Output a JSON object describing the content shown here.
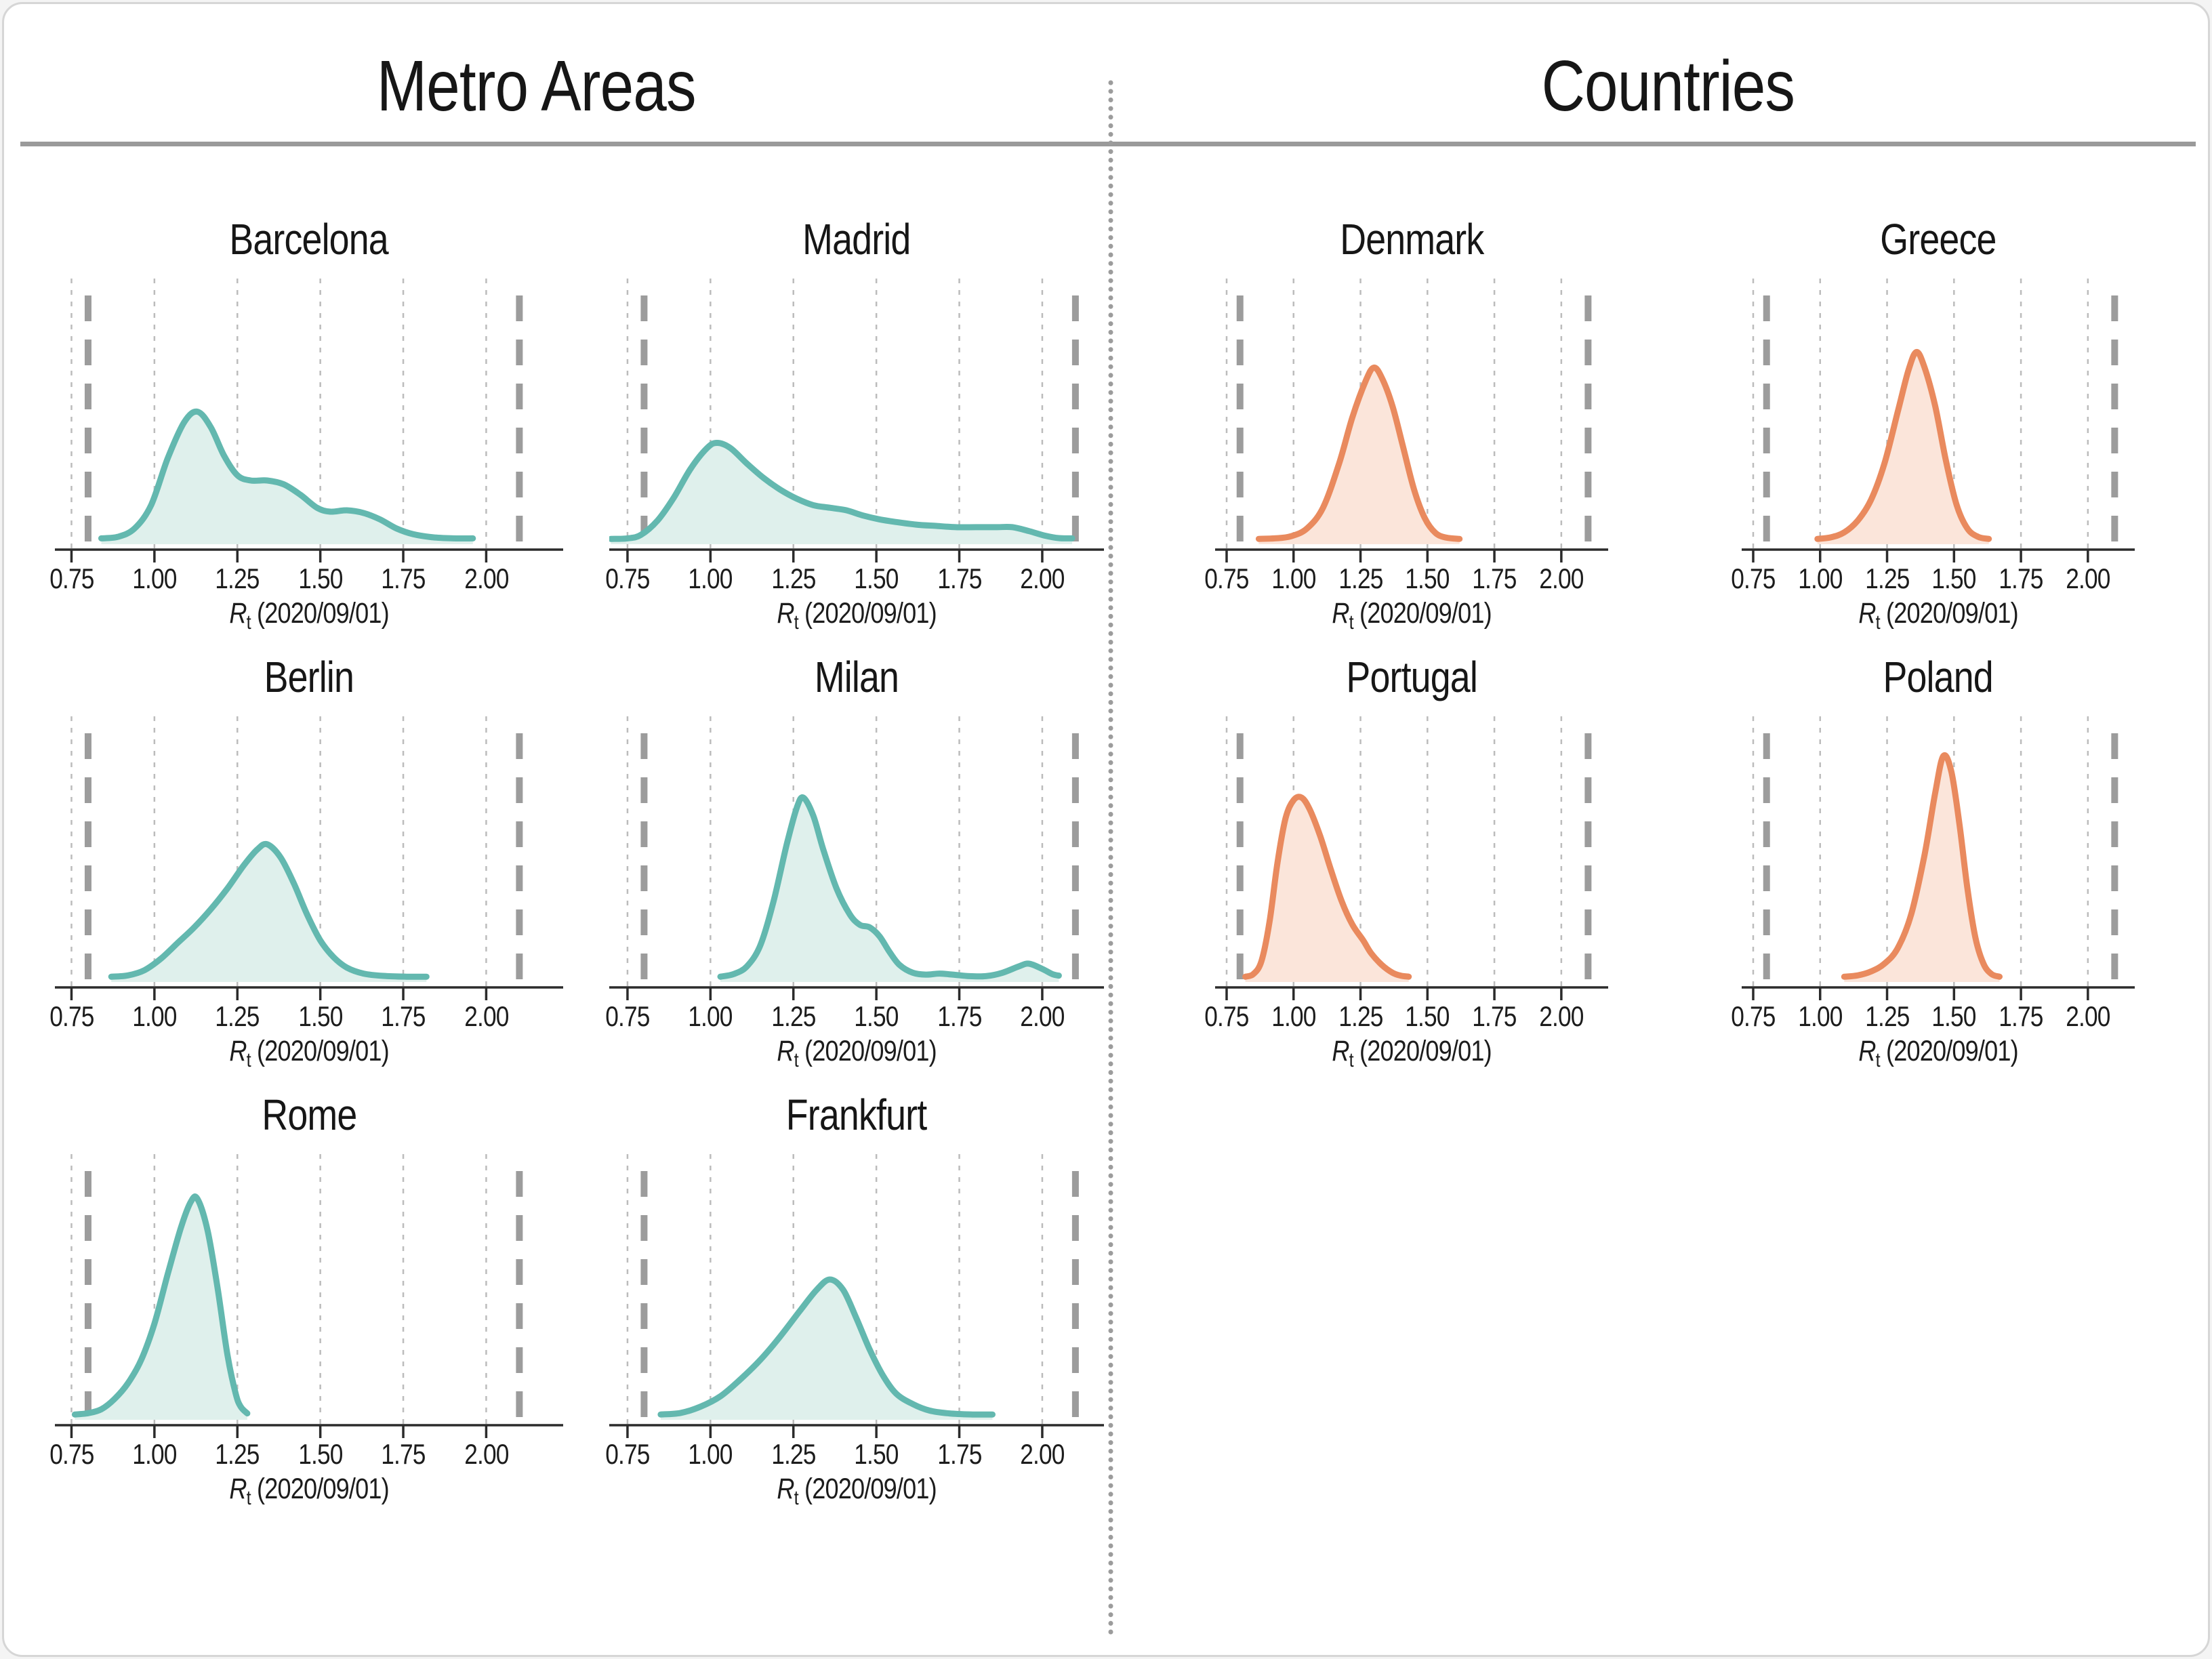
{
  "colors": {
    "metro_stroke": "#63b8af",
    "metro_fill": "#dff0ec",
    "country_stroke": "#e98a5e",
    "country_fill": "#fbe5da",
    "axis": "#2b2b2b",
    "gridline": "#bcbcbc",
    "bound_dash": "#9c9c9c",
    "divider": "#9a9a9a",
    "dots": "#9c9c9c"
  },
  "axis": {
    "xlabel_r": "R",
    "xlabel_sub": "t",
    "xlabel_rest": " (2020/09/01)"
  },
  "chart_data": {
    "type": "area",
    "subtype": "density-kde-small-multiples",
    "title": "",
    "xlabel": "R_t (2020/09/01)",
    "x_ticks": [
      0.75,
      1.0,
      1.25,
      1.5,
      1.75,
      2.0
    ],
    "x_tick_labels": [
      "0.75",
      "1.00",
      "1.25",
      "1.50",
      "1.75",
      "2.00"
    ],
    "reference_lines_x": [
      0.8,
      2.1
    ],
    "grid": "vertical-dotted",
    "legend": "none",
    "sections": [
      {
        "title": "Metro Areas",
        "stroke": "#63b8af",
        "fill": "#dff0ec"
      },
      {
        "title": "Countries",
        "stroke": "#e98a5e",
        "fill": "#fbe5da"
      }
    ],
    "panels": [
      {
        "title": "Barcelona",
        "section": 0,
        "col": "leftA",
        "row": 0,
        "points": [
          [
            0.84,
            0.012
          ],
          [
            0.89,
            0.018
          ],
          [
            0.94,
            0.05
          ],
          [
            0.99,
            0.14
          ],
          [
            1.04,
            0.32
          ],
          [
            1.09,
            0.46
          ],
          [
            1.13,
            0.5
          ],
          [
            1.17,
            0.44
          ],
          [
            1.21,
            0.33
          ],
          [
            1.25,
            0.255
          ],
          [
            1.29,
            0.235
          ],
          [
            1.34,
            0.235
          ],
          [
            1.39,
            0.22
          ],
          [
            1.44,
            0.18
          ],
          [
            1.49,
            0.13
          ],
          [
            1.53,
            0.115
          ],
          [
            1.58,
            0.12
          ],
          [
            1.63,
            0.11
          ],
          [
            1.68,
            0.085
          ],
          [
            1.73,
            0.05
          ],
          [
            1.78,
            0.028
          ],
          [
            1.84,
            0.016
          ],
          [
            1.9,
            0.012
          ],
          [
            1.96,
            0.012
          ]
        ]
      },
      {
        "title": "Madrid",
        "section": 0,
        "col": "leftB",
        "row": 0,
        "points": [
          [
            0.7,
            0.01
          ],
          [
            0.75,
            0.012
          ],
          [
            0.79,
            0.025
          ],
          [
            0.84,
            0.08
          ],
          [
            0.89,
            0.17
          ],
          [
            0.94,
            0.28
          ],
          [
            0.99,
            0.36
          ],
          [
            1.02,
            0.38
          ],
          [
            1.06,
            0.36
          ],
          [
            1.11,
            0.3
          ],
          [
            1.16,
            0.245
          ],
          [
            1.21,
            0.2
          ],
          [
            1.26,
            0.165
          ],
          [
            1.31,
            0.14
          ],
          [
            1.36,
            0.13
          ],
          [
            1.41,
            0.12
          ],
          [
            1.46,
            0.1
          ],
          [
            1.51,
            0.085
          ],
          [
            1.56,
            0.075
          ],
          [
            1.62,
            0.065
          ],
          [
            1.68,
            0.06
          ],
          [
            1.74,
            0.055
          ],
          [
            1.8,
            0.055
          ],
          [
            1.86,
            0.055
          ],
          [
            1.91,
            0.055
          ],
          [
            1.96,
            0.04
          ],
          [
            2.01,
            0.022
          ],
          [
            2.05,
            0.013
          ],
          [
            2.09,
            0.012
          ]
        ]
      },
      {
        "title": "Berlin",
        "section": 0,
        "col": "leftA",
        "row": 1,
        "points": [
          [
            0.87,
            0.01
          ],
          [
            0.92,
            0.015
          ],
          [
            0.97,
            0.035
          ],
          [
            1.02,
            0.08
          ],
          [
            1.07,
            0.14
          ],
          [
            1.12,
            0.2
          ],
          [
            1.17,
            0.27
          ],
          [
            1.22,
            0.35
          ],
          [
            1.27,
            0.44
          ],
          [
            1.31,
            0.5
          ],
          [
            1.34,
            0.52
          ],
          [
            1.38,
            0.47
          ],
          [
            1.42,
            0.37
          ],
          [
            1.46,
            0.25
          ],
          [
            1.5,
            0.15
          ],
          [
            1.54,
            0.085
          ],
          [
            1.58,
            0.045
          ],
          [
            1.63,
            0.022
          ],
          [
            1.69,
            0.013
          ],
          [
            1.76,
            0.01
          ],
          [
            1.82,
            0.01
          ]
        ]
      },
      {
        "title": "Milan",
        "section": 0,
        "col": "leftB",
        "row": 1,
        "points": [
          [
            1.03,
            0.01
          ],
          [
            1.07,
            0.02
          ],
          [
            1.11,
            0.05
          ],
          [
            1.15,
            0.13
          ],
          [
            1.19,
            0.3
          ],
          [
            1.23,
            0.52
          ],
          [
            1.26,
            0.66
          ],
          [
            1.28,
            0.7
          ],
          [
            1.31,
            0.63
          ],
          [
            1.34,
            0.5
          ],
          [
            1.38,
            0.35
          ],
          [
            1.42,
            0.25
          ],
          [
            1.45,
            0.21
          ],
          [
            1.48,
            0.2
          ],
          [
            1.51,
            0.165
          ],
          [
            1.54,
            0.105
          ],
          [
            1.57,
            0.055
          ],
          [
            1.61,
            0.025
          ],
          [
            1.65,
            0.018
          ],
          [
            1.69,
            0.022
          ],
          [
            1.73,
            0.018
          ],
          [
            1.78,
            0.012
          ],
          [
            1.83,
            0.012
          ],
          [
            1.88,
            0.025
          ],
          [
            1.93,
            0.05
          ],
          [
            1.96,
            0.06
          ],
          [
            2.0,
            0.04
          ],
          [
            2.03,
            0.02
          ],
          [
            2.05,
            0.014
          ]
        ]
      },
      {
        "title": "Rome",
        "section": 0,
        "col": "leftA",
        "row": 2,
        "points": [
          [
            0.76,
            0.01
          ],
          [
            0.8,
            0.015
          ],
          [
            0.84,
            0.03
          ],
          [
            0.88,
            0.07
          ],
          [
            0.92,
            0.13
          ],
          [
            0.96,
            0.22
          ],
          [
            1.0,
            0.36
          ],
          [
            1.04,
            0.55
          ],
          [
            1.08,
            0.73
          ],
          [
            1.11,
            0.83
          ],
          [
            1.13,
            0.84
          ],
          [
            1.16,
            0.72
          ],
          [
            1.19,
            0.5
          ],
          [
            1.22,
            0.24
          ],
          [
            1.245,
            0.09
          ],
          [
            1.26,
            0.04
          ],
          [
            1.28,
            0.014
          ]
        ]
      },
      {
        "title": "Frankfurt",
        "section": 0,
        "col": "leftB",
        "row": 2,
        "points": [
          [
            0.85,
            0.01
          ],
          [
            0.91,
            0.016
          ],
          [
            0.97,
            0.04
          ],
          [
            1.03,
            0.08
          ],
          [
            1.09,
            0.145
          ],
          [
            1.15,
            0.22
          ],
          [
            1.21,
            0.31
          ],
          [
            1.27,
            0.41
          ],
          [
            1.32,
            0.49
          ],
          [
            1.36,
            0.53
          ],
          [
            1.4,
            0.49
          ],
          [
            1.44,
            0.38
          ],
          [
            1.48,
            0.26
          ],
          [
            1.52,
            0.16
          ],
          [
            1.56,
            0.09
          ],
          [
            1.61,
            0.05
          ],
          [
            1.66,
            0.025
          ],
          [
            1.72,
            0.014
          ],
          [
            1.79,
            0.01
          ],
          [
            1.85,
            0.01
          ]
        ]
      },
      {
        "title": "Denmark",
        "section": 1,
        "col": "rightA",
        "row": 0,
        "points": [
          [
            0.87,
            0.01
          ],
          [
            0.93,
            0.012
          ],
          [
            0.99,
            0.02
          ],
          [
            1.05,
            0.05
          ],
          [
            1.11,
            0.13
          ],
          [
            1.17,
            0.3
          ],
          [
            1.22,
            0.48
          ],
          [
            1.27,
            0.62
          ],
          [
            1.3,
            0.67
          ],
          [
            1.33,
            0.63
          ],
          [
            1.37,
            0.52
          ],
          [
            1.41,
            0.36
          ],
          [
            1.45,
            0.2
          ],
          [
            1.49,
            0.09
          ],
          [
            1.53,
            0.033
          ],
          [
            1.57,
            0.015
          ],
          [
            1.62,
            0.01
          ]
        ]
      },
      {
        "title": "Greece",
        "section": 1,
        "col": "rightB",
        "row": 0,
        "points": [
          [
            0.99,
            0.01
          ],
          [
            1.04,
            0.016
          ],
          [
            1.09,
            0.035
          ],
          [
            1.14,
            0.08
          ],
          [
            1.19,
            0.16
          ],
          [
            1.24,
            0.3
          ],
          [
            1.29,
            0.5
          ],
          [
            1.33,
            0.66
          ],
          [
            1.36,
            0.73
          ],
          [
            1.39,
            0.67
          ],
          [
            1.43,
            0.52
          ],
          [
            1.47,
            0.31
          ],
          [
            1.51,
            0.14
          ],
          [
            1.55,
            0.05
          ],
          [
            1.59,
            0.018
          ],
          [
            1.63,
            0.01
          ]
        ]
      },
      {
        "title": "Portugal",
        "section": 1,
        "col": "rightA",
        "row": 1,
        "points": [
          [
            0.82,
            0.01
          ],
          [
            0.85,
            0.02
          ],
          [
            0.88,
            0.07
          ],
          [
            0.91,
            0.22
          ],
          [
            0.94,
            0.45
          ],
          [
            0.97,
            0.62
          ],
          [
            1.0,
            0.69
          ],
          [
            1.03,
            0.7
          ],
          [
            1.06,
            0.655
          ],
          [
            1.1,
            0.55
          ],
          [
            1.14,
            0.42
          ],
          [
            1.18,
            0.3
          ],
          [
            1.22,
            0.21
          ],
          [
            1.26,
            0.15
          ],
          [
            1.29,
            0.1
          ],
          [
            1.33,
            0.055
          ],
          [
            1.37,
            0.025
          ],
          [
            1.4,
            0.014
          ],
          [
            1.43,
            0.01
          ]
        ]
      },
      {
        "title": "Poland",
        "section": 1,
        "col": "rightB",
        "row": 1,
        "points": [
          [
            1.09,
            0.01
          ],
          [
            1.14,
            0.015
          ],
          [
            1.19,
            0.03
          ],
          [
            1.24,
            0.06
          ],
          [
            1.29,
            0.12
          ],
          [
            1.34,
            0.25
          ],
          [
            1.39,
            0.48
          ],
          [
            1.43,
            0.72
          ],
          [
            1.46,
            0.86
          ],
          [
            1.49,
            0.8
          ],
          [
            1.52,
            0.6
          ],
          [
            1.55,
            0.35
          ],
          [
            1.58,
            0.16
          ],
          [
            1.61,
            0.06
          ],
          [
            1.64,
            0.02
          ],
          [
            1.67,
            0.01
          ]
        ]
      }
    ]
  }
}
